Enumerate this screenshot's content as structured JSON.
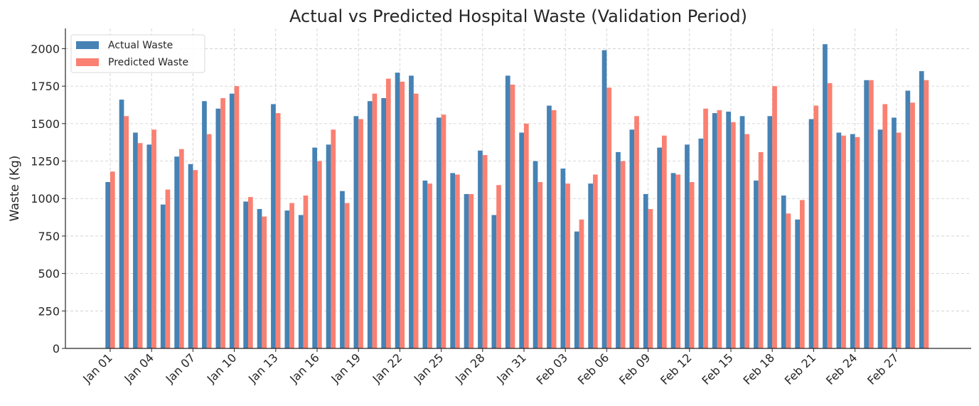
{
  "chart_data": {
    "type": "bar",
    "title": "Actual vs Predicted Hospital Waste (Validation Period)",
    "xlabel": "",
    "ylabel": "Waste (Kg)",
    "ylim": [
      0,
      2135
    ],
    "yticks": [
      0,
      250,
      500,
      750,
      1000,
      1250,
      1500,
      1750,
      2000
    ],
    "grid": true,
    "legend_position": "top-left",
    "categories": [
      "Jan 01",
      "Jan 02",
      "Jan 03",
      "Jan 04",
      "Jan 05",
      "Jan 06",
      "Jan 07",
      "Jan 08",
      "Jan 09",
      "Jan 10",
      "Jan 11",
      "Jan 12",
      "Jan 13",
      "Jan 14",
      "Jan 15",
      "Jan 16",
      "Jan 17",
      "Jan 18",
      "Jan 19",
      "Jan 20",
      "Jan 21",
      "Jan 22",
      "Jan 23",
      "Jan 24",
      "Jan 25",
      "Jan 26",
      "Jan 27",
      "Jan 28",
      "Jan 29",
      "Jan 30",
      "Jan 31",
      "Feb 01",
      "Feb 02",
      "Feb 03",
      "Feb 04",
      "Feb 05",
      "Feb 06",
      "Feb 07",
      "Feb 08",
      "Feb 09",
      "Feb 10",
      "Feb 11",
      "Feb 12",
      "Feb 13",
      "Feb 14",
      "Feb 15",
      "Feb 16",
      "Feb 17",
      "Feb 18",
      "Feb 19",
      "Feb 20",
      "Feb 21",
      "Feb 22",
      "Feb 23",
      "Feb 24",
      "Feb 25",
      "Feb 26",
      "Feb 27",
      "Feb 28",
      "Feb 29"
    ],
    "xtick_labels": [
      "Jan 01",
      "Jan 04",
      "Jan 07",
      "Jan 10",
      "Jan 13",
      "Jan 16",
      "Jan 19",
      "Jan 22",
      "Jan 25",
      "Jan 28",
      "Jan 31",
      "Feb 03",
      "Feb 06",
      "Feb 09",
      "Feb 12",
      "Feb 15",
      "Feb 18",
      "Feb 21",
      "Feb 24",
      "Feb 27"
    ],
    "series": [
      {
        "name": "Actual Waste",
        "color": "#4682b4",
        "values": [
          1110,
          1660,
          1440,
          1360,
          960,
          1280,
          1230,
          1650,
          1600,
          1700,
          980,
          930,
          1630,
          920,
          890,
          1340,
          1360,
          1050,
          1550,
          1650,
          1670,
          1840,
          1820,
          1120,
          1540,
          1170,
          1030,
          1320,
          890,
          1820,
          1440,
          1250,
          1620,
          1200,
          780,
          1100,
          1990,
          1310,
          1460,
          1030,
          1340,
          1170,
          1360,
          1400,
          1570,
          1580,
          1550,
          1120,
          1550,
          1020,
          860,
          1530,
          2030,
          1440,
          1430,
          1790,
          1460,
          1540,
          1720,
          1850
        ]
      },
      {
        "name": "Predicted Waste",
        "color": "#fa8072",
        "values": [
          1180,
          1550,
          1370,
          1460,
          1060,
          1330,
          1190,
          1430,
          1670,
          1750,
          1010,
          880,
          1570,
          970,
          1020,
          1250,
          1460,
          970,
          1530,
          1700,
          1800,
          1780,
          1700,
          1100,
          1560,
          1160,
          1030,
          1290,
          1090,
          1760,
          1500,
          1110,
          1590,
          1100,
          860,
          1160,
          1740,
          1250,
          1550,
          930,
          1420,
          1160,
          1110,
          1600,
          1590,
          1510,
          1430,
          1310,
          1750,
          900,
          990,
          1620,
          1770,
          1420,
          1410,
          1790,
          1630,
          1440,
          1640,
          1790
        ]
      }
    ]
  }
}
